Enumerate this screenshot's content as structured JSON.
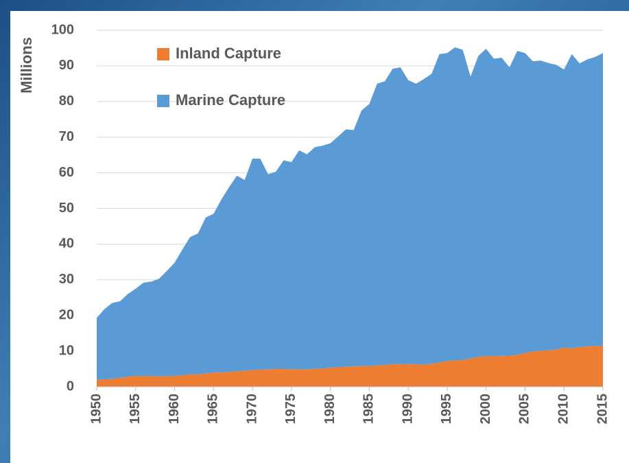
{
  "chart_data": {
    "type": "area",
    "stacked": true,
    "y_label": "Millions",
    "x": [
      1950,
      1951,
      1952,
      1953,
      1954,
      1955,
      1956,
      1957,
      1958,
      1959,
      1960,
      1961,
      1962,
      1963,
      1964,
      1965,
      1966,
      1967,
      1968,
      1969,
      1970,
      1971,
      1972,
      1973,
      1974,
      1975,
      1976,
      1977,
      1978,
      1979,
      1980,
      1981,
      1982,
      1983,
      1984,
      1985,
      1986,
      1987,
      1988,
      1989,
      1990,
      1991,
      1992,
      1993,
      1994,
      1995,
      1996,
      1997,
      1998,
      1999,
      2000,
      2001,
      2002,
      2003,
      2004,
      2005,
      2006,
      2007,
      2008,
      2009,
      2010,
      2011,
      2012,
      2013,
      2014,
      2015
    ],
    "series": [
      {
        "name": "Inland Capture",
        "color": "#ed7d31",
        "values": [
          2.0,
          2.1,
          2.2,
          2.5,
          2.8,
          3.0,
          3.0,
          3.0,
          2.9,
          3.0,
          3.0,
          3.2,
          3.5,
          3.5,
          3.7,
          4.0,
          4.0,
          4.2,
          4.3,
          4.5,
          4.7,
          4.8,
          4.9,
          5.0,
          5.0,
          4.9,
          4.9,
          4.9,
          5.0,
          5.1,
          5.3,
          5.5,
          5.6,
          5.7,
          5.8,
          5.8,
          6.0,
          6.1,
          6.3,
          6.3,
          6.4,
          6.3,
          6.2,
          6.5,
          6.8,
          7.2,
          7.4,
          7.5,
          7.9,
          8.4,
          8.6,
          8.6,
          8.6,
          8.7,
          8.9,
          9.5,
          9.9,
          10.1,
          10.2,
          10.4,
          11.0,
          10.8,
          11.2,
          11.3,
          11.4,
          11.5
        ]
      },
      {
        "name": "Marine Capture",
        "color": "#5b9bd5",
        "values": [
          17.3,
          19.7,
          21.3,
          21.5,
          23.2,
          24.5,
          26.2,
          26.5,
          27.4,
          29.5,
          31.8,
          35.3,
          38.5,
          39.5,
          43.8,
          44.5,
          48.5,
          51.8,
          54.9,
          53.5,
          59.3,
          59.2,
          54.7,
          55.3,
          58.5,
          58.1,
          61.4,
          60.3,
          62.2,
          62.5,
          63.0,
          64.7,
          66.6,
          66.3,
          71.7,
          73.5,
          79.0,
          79.6,
          82.9,
          83.3,
          79.6,
          78.7,
          80.1,
          81.3,
          86.5,
          86.4,
          87.8,
          87.0,
          79.1,
          84.4,
          86.2,
          83.4,
          83.7,
          80.9,
          85.3,
          84.1,
          81.4,
          81.4,
          80.6,
          79.9,
          78.0,
          82.5,
          79.5,
          80.5,
          81.1,
          82.1
        ]
      }
    ],
    "xlim": [
      1950,
      2015
    ],
    "xticks": [
      1950,
      1955,
      1960,
      1965,
      1970,
      1975,
      1980,
      1985,
      1990,
      1995,
      2000,
      2005,
      2010,
      2015
    ],
    "ylim": [
      0,
      100
    ],
    "yticks": [
      0,
      10,
      20,
      30,
      40,
      50,
      60,
      70,
      80,
      90,
      100
    ],
    "grid": true,
    "legend": "upper left"
  }
}
